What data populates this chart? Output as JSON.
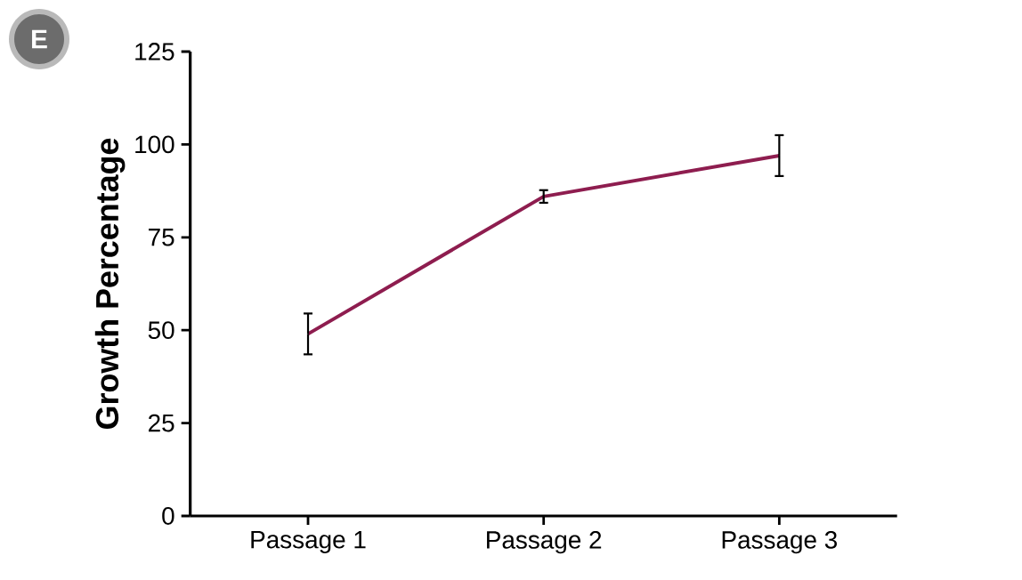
{
  "chart_data": {
    "type": "line",
    "ylabel": "Growth Percentage",
    "annotations": [
      "E"
    ],
    "categories": [
      "Passage 1",
      "Passage 2",
      "Passage 3"
    ],
    "series": [
      {
        "color": "#8e1d4f",
        "values": [
          49,
          86,
          97
        ],
        "errors": [
          5.5,
          1.7,
          5.5
        ]
      }
    ],
    "ylim": [
      0,
      125
    ],
    "yticks": [
      0,
      25,
      50,
      75,
      100,
      125
    ],
    "grid": false,
    "marker": "none",
    "line_style": "solid"
  }
}
